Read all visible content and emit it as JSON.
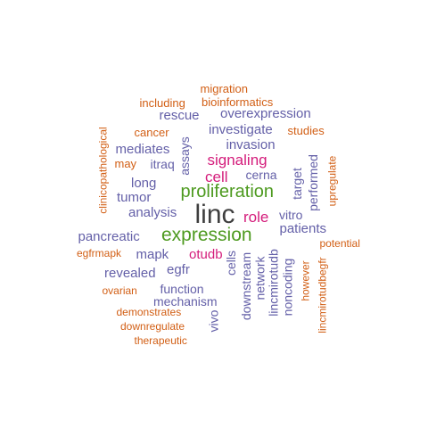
{
  "palette": {
    "gray": "#3f3f3f",
    "green": "#4d9a1f",
    "magenta": "#d41c7b",
    "purple": "#6460a8",
    "orange": "#d25f15"
  },
  "words": [
    {
      "text": "linc",
      "color": "gray",
      "orientation": "horizontal"
    },
    {
      "text": "expression",
      "color": "green",
      "orientation": "horizontal"
    },
    {
      "text": "proliferation",
      "color": "green",
      "orientation": "horizontal"
    },
    {
      "text": "signaling",
      "color": "magenta",
      "orientation": "horizontal"
    },
    {
      "text": "cell",
      "color": "magenta",
      "orientation": "horizontal"
    },
    {
      "text": "role",
      "color": "magenta",
      "orientation": "horizontal"
    },
    {
      "text": "otudb",
      "color": "magenta",
      "orientation": "horizontal"
    },
    {
      "text": "overexpression",
      "color": "purple",
      "orientation": "horizontal"
    },
    {
      "text": "rescue",
      "color": "purple",
      "orientation": "horizontal"
    },
    {
      "text": "investigate",
      "color": "purple",
      "orientation": "horizontal"
    },
    {
      "text": "invasion",
      "color": "purple",
      "orientation": "horizontal"
    },
    {
      "text": "mediates",
      "color": "purple",
      "orientation": "horizontal"
    },
    {
      "text": "itraq",
      "color": "purple",
      "orientation": "horizontal"
    },
    {
      "text": "assays",
      "color": "purple",
      "orientation": "vertical"
    },
    {
      "text": "cerna",
      "color": "purple",
      "orientation": "horizontal"
    },
    {
      "text": "long",
      "color": "purple",
      "orientation": "horizontal"
    },
    {
      "text": "tumor",
      "color": "purple",
      "orientation": "horizontal"
    },
    {
      "text": "analysis",
      "color": "purple",
      "orientation": "horizontal"
    },
    {
      "text": "target",
      "color": "purple",
      "orientation": "vertical"
    },
    {
      "text": "performed",
      "color": "purple",
      "orientation": "vertical"
    },
    {
      "text": "vitro",
      "color": "purple",
      "orientation": "horizontal"
    },
    {
      "text": "patients",
      "color": "purple",
      "orientation": "horizontal"
    },
    {
      "text": "pancreatic",
      "color": "purple",
      "orientation": "horizontal"
    },
    {
      "text": "mapk",
      "color": "purple",
      "orientation": "horizontal"
    },
    {
      "text": "revealed",
      "color": "purple",
      "orientation": "horizontal"
    },
    {
      "text": "egfr",
      "color": "purple",
      "orientation": "horizontal"
    },
    {
      "text": "function",
      "color": "purple",
      "orientation": "horizontal"
    },
    {
      "text": "mechanism",
      "color": "purple",
      "orientation": "horizontal"
    },
    {
      "text": "cells",
      "color": "purple",
      "orientation": "vertical"
    },
    {
      "text": "downstream",
      "color": "purple",
      "orientation": "vertical"
    },
    {
      "text": "network",
      "color": "purple",
      "orientation": "vertical"
    },
    {
      "text": "lincmirotudb",
      "color": "purple",
      "orientation": "vertical"
    },
    {
      "text": "noncoding",
      "color": "purple",
      "orientation": "vertical"
    },
    {
      "text": "vivo",
      "color": "purple",
      "orientation": "vertical"
    },
    {
      "text": "migration",
      "color": "orange",
      "orientation": "horizontal"
    },
    {
      "text": "including",
      "color": "orange",
      "orientation": "horizontal"
    },
    {
      "text": "bioinformatics",
      "color": "orange",
      "orientation": "horizontal"
    },
    {
      "text": "cancer",
      "color": "orange",
      "orientation": "horizontal"
    },
    {
      "text": "studies",
      "color": "orange",
      "orientation": "horizontal"
    },
    {
      "text": "may",
      "color": "orange",
      "orientation": "horizontal"
    },
    {
      "text": "clinicopathological",
      "color": "orange",
      "orientation": "vertical"
    },
    {
      "text": "upregulate",
      "color": "orange",
      "orientation": "vertical"
    },
    {
      "text": "potential",
      "color": "orange",
      "orientation": "horizontal"
    },
    {
      "text": "egfrmapk",
      "color": "orange",
      "orientation": "horizontal"
    },
    {
      "text": "ovarian",
      "color": "orange",
      "orientation": "horizontal"
    },
    {
      "text": "demonstrates",
      "color": "orange",
      "orientation": "horizontal"
    },
    {
      "text": "downregulate",
      "color": "orange",
      "orientation": "horizontal"
    },
    {
      "text": "therapeutic",
      "color": "orange",
      "orientation": "horizontal"
    },
    {
      "text": "however",
      "color": "orange",
      "orientation": "vertical"
    },
    {
      "text": "lincmirotudbegfr",
      "color": "orange",
      "orientation": "vertical"
    }
  ]
}
